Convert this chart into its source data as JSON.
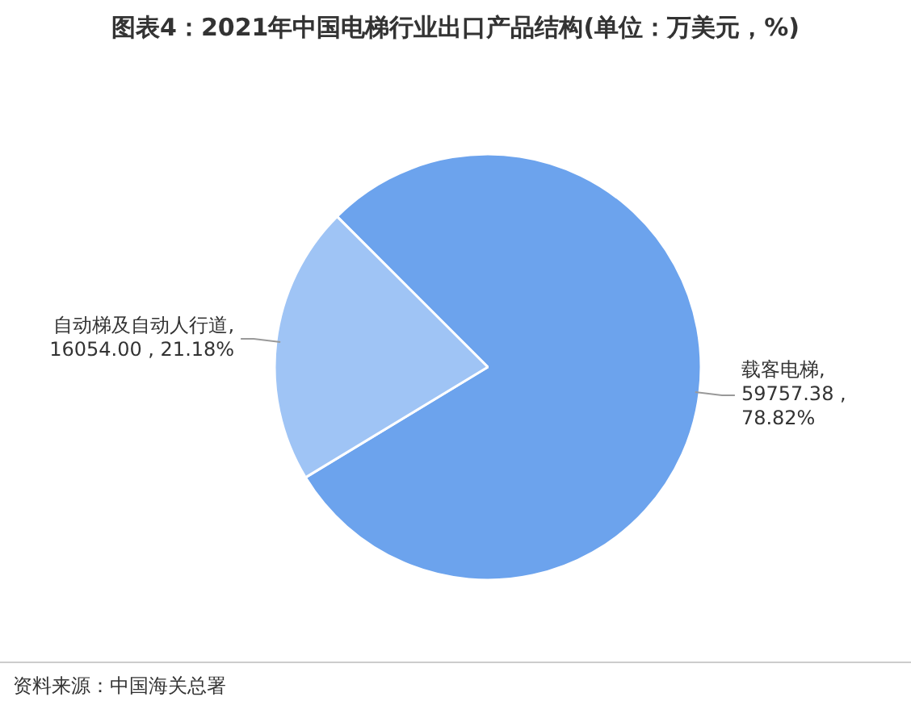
{
  "chart_data": {
    "type": "pie",
    "title": "图表4：2021年中国电梯行业出口产品结构(单位：万美元，%)",
    "categories": [
      "载客电梯",
      "自动梯及自动人行道"
    ],
    "values": [
      59757.38,
      16054.0
    ],
    "value_labels": [
      ", 59757.38 , 78.82%",
      ", 16054.00 , 21.18%"
    ],
    "colors": [
      "#6ca3ed",
      "#9fc4f5"
    ],
    "legend": false,
    "annotations": [
      "资料来源：中国海关总署"
    ]
  }
}
